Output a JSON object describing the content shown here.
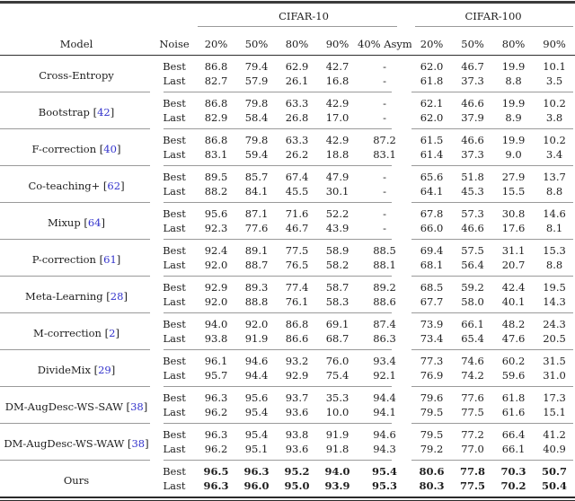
{
  "table": {
    "header": {
      "model_label": "Model",
      "noise_label": "Noise",
      "group1_label": "CIFAR-10",
      "group2_label": "CIFAR-100",
      "group1_cols": [
        "20%",
        "50%",
        "80%",
        "90%",
        "40% Asym"
      ],
      "group2_cols": [
        "20%",
        "50%",
        "80%",
        "90%"
      ]
    },
    "stat_labels": {
      "best": "Best",
      "last": "Last"
    },
    "citation_brackets": {
      "open": "[",
      "close": "]"
    },
    "missing_value": "-",
    "rows": [
      {
        "model": "Cross-Entropy",
        "citation": "",
        "bold": false,
        "best": [
          "86.8",
          "79.4",
          "62.9",
          "42.7",
          "-",
          "62.0",
          "46.7",
          "19.9",
          "10.1"
        ],
        "last": [
          "82.7",
          "57.9",
          "26.1",
          "16.8",
          "-",
          "61.8",
          "37.3",
          "8.8",
          "3.5"
        ]
      },
      {
        "model": "Bootstrap",
        "citation": "42",
        "bold": false,
        "best": [
          "86.8",
          "79.8",
          "63.3",
          "42.9",
          "-",
          "62.1",
          "46.6",
          "19.9",
          "10.2"
        ],
        "last": [
          "82.9",
          "58.4",
          "26.8",
          "17.0",
          "-",
          "62.0",
          "37.9",
          "8.9",
          "3.8"
        ]
      },
      {
        "model": "F-correction",
        "citation": "40",
        "bold": false,
        "best": [
          "86.8",
          "79.8",
          "63.3",
          "42.9",
          "87.2",
          "61.5",
          "46.6",
          "19.9",
          "10.2"
        ],
        "last": [
          "83.1",
          "59.4",
          "26.2",
          "18.8",
          "83.1",
          "61.4",
          "37.3",
          "9.0",
          "3.4"
        ]
      },
      {
        "model": "Co-teaching+",
        "citation": "62",
        "bold": false,
        "best": [
          "89.5",
          "85.7",
          "67.4",
          "47.9",
          "-",
          "65.6",
          "51.8",
          "27.9",
          "13.7"
        ],
        "last": [
          "88.2",
          "84.1",
          "45.5",
          "30.1",
          "-",
          "64.1",
          "45.3",
          "15.5",
          "8.8"
        ]
      },
      {
        "model": "Mixup",
        "citation": "64",
        "bold": false,
        "best": [
          "95.6",
          "87.1",
          "71.6",
          "52.2",
          "-",
          "67.8",
          "57.3",
          "30.8",
          "14.6"
        ],
        "last": [
          "92.3",
          "77.6",
          "46.7",
          "43.9",
          "-",
          "66.0",
          "46.6",
          "17.6",
          "8.1"
        ]
      },
      {
        "model": "P-correction",
        "citation": "61",
        "bold": false,
        "best": [
          "92.4",
          "89.1",
          "77.5",
          "58.9",
          "88.5",
          "69.4",
          "57.5",
          "31.1",
          "15.3"
        ],
        "last": [
          "92.0",
          "88.7",
          "76.5",
          "58.2",
          "88.1",
          "68.1",
          "56.4",
          "20.7",
          "8.8"
        ]
      },
      {
        "model": "Meta-Learning",
        "citation": "28",
        "bold": false,
        "best": [
          "92.9",
          "89.3",
          "77.4",
          "58.7",
          "89.2",
          "68.5",
          "59.2",
          "42.4",
          "19.5"
        ],
        "last": [
          "92.0",
          "88.8",
          "76.1",
          "58.3",
          "88.6",
          "67.7",
          "58.0",
          "40.1",
          "14.3"
        ]
      },
      {
        "model": "M-correction",
        "citation": "2",
        "bold": false,
        "best": [
          "94.0",
          "92.0",
          "86.8",
          "69.1",
          "87.4",
          "73.9",
          "66.1",
          "48.2",
          "24.3"
        ],
        "last": [
          "93.8",
          "91.9",
          "86.6",
          "68.7",
          "86.3",
          "73.4",
          "65.4",
          "47.6",
          "20.5"
        ]
      },
      {
        "model": "DivideMix",
        "citation": "29",
        "bold": false,
        "best": [
          "96.1",
          "94.6",
          "93.2",
          "76.0",
          "93.4",
          "77.3",
          "74.6",
          "60.2",
          "31.5"
        ],
        "last": [
          "95.7",
          "94.4",
          "92.9",
          "75.4",
          "92.1",
          "76.9",
          "74.2",
          "59.6",
          "31.0"
        ]
      },
      {
        "model": "DM-AugDesc-WS-SAW",
        "citation": "38",
        "bold": false,
        "best": [
          "96.3",
          "95.6",
          "93.7",
          "35.3",
          "94.4",
          "79.6",
          "77.6",
          "61.8",
          "17.3"
        ],
        "last": [
          "96.2",
          "95.4",
          "93.6",
          "10.0",
          "94.1",
          "79.5",
          "77.5",
          "61.6",
          "15.1"
        ]
      },
      {
        "model": "DM-AugDesc-WS-WAW",
        "citation": "38",
        "bold": false,
        "best": [
          "96.3",
          "95.4",
          "93.8",
          "91.9",
          "94.6",
          "79.5",
          "77.2",
          "66.4",
          "41.2"
        ],
        "last": [
          "96.2",
          "95.1",
          "93.6",
          "91.8",
          "94.3",
          "79.2",
          "77.0",
          "66.1",
          "40.9"
        ]
      },
      {
        "model": "Ours",
        "citation": "",
        "bold": true,
        "best": [
          "96.5",
          "96.3",
          "95.2",
          "94.0",
          "95.4",
          "80.6",
          "77.8",
          "70.3",
          "50.7"
        ],
        "last": [
          "96.3",
          "96.0",
          "95.0",
          "93.9",
          "95.3",
          "80.3",
          "77.5",
          "70.2",
          "50.4"
        ]
      }
    ]
  },
  "colors": {
    "background": "#ffffff",
    "text": "#1e1e1e",
    "citation": "#3333cc",
    "rule_dark": "#2e2e2e",
    "rule_light": "#9a9a9a"
  }
}
